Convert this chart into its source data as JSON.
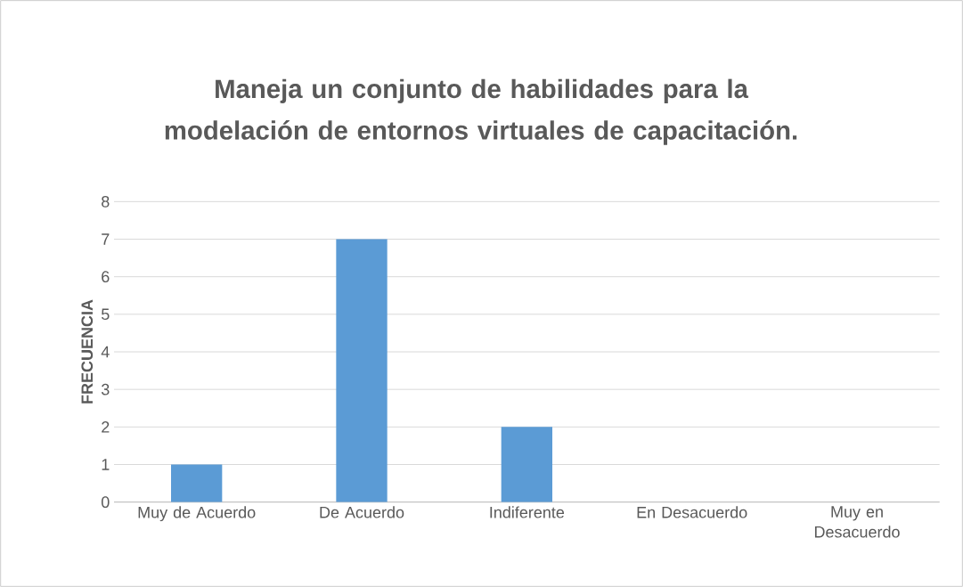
{
  "chart_data": {
    "type": "bar",
    "title": "Maneja un conjunto de habilidades para la modelación de entornos virtuales de capacitación.",
    "ylabel": "FRECUENCIA",
    "categories": [
      "Muy de Acuerdo",
      "De Acuerdo",
      "Indiferente",
      "En Desacuerdo",
      "Muy en Desacuerdo"
    ],
    "values": [
      1,
      7,
      2,
      0,
      0
    ],
    "color": "#5b9bd5",
    "ylim": [
      0,
      8
    ],
    "yticks": [
      0,
      1,
      2,
      3,
      4,
      5,
      6,
      7,
      8
    ],
    "grid": "y"
  }
}
